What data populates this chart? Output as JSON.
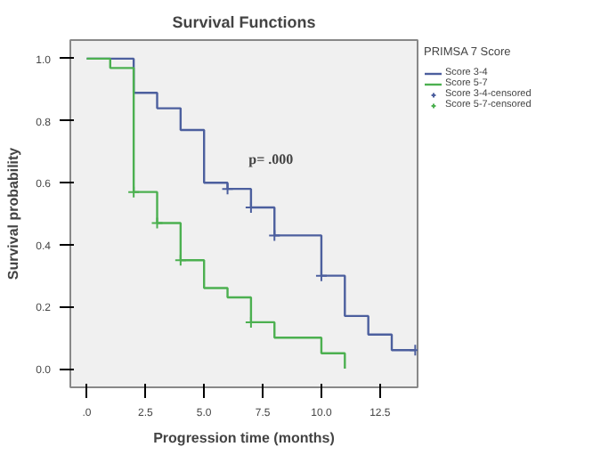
{
  "chart_data": {
    "type": "step",
    "title": "Survival Functions",
    "xlabel": "Progression time (months)",
    "ylabel": "Survival probability",
    "legend_title": "PRIMSA 7 Score",
    "series": [
      {
        "name": "Score 3-4",
        "color": "#4c5f9e",
        "x": [
          0,
          2,
          3,
          4,
          5,
          6,
          7,
          8,
          10,
          11,
          12,
          13,
          14
        ],
        "values": [
          1.0,
          0.89,
          0.84,
          0.77,
          0.6,
          0.58,
          0.52,
          0.43,
          0.3,
          0.17,
          0.11,
          0.06,
          0.06
        ]
      },
      {
        "name": "Score 5-7",
        "color": "#4cb050",
        "x": [
          0,
          1,
          2,
          3,
          4,
          5,
          6,
          7,
          8,
          10,
          11
        ],
        "values": [
          1.0,
          0.97,
          0.57,
          0.47,
          0.35,
          0.26,
          0.23,
          0.15,
          0.1,
          0.05,
          0.0
        ]
      },
      {
        "name": "Score 3-4-censored",
        "type": "scatter",
        "marker": "cross",
        "color": "#4c5f9e",
        "x": [
          6,
          7,
          8,
          10,
          14
        ],
        "values": [
          0.58,
          0.52,
          0.43,
          0.3,
          0.06
        ]
      },
      {
        "name": "Score 5-7-censored",
        "type": "scatter",
        "marker": "cross",
        "color": "#4cb050",
        "x": [
          2,
          3,
          4,
          7
        ],
        "values": [
          0.57,
          0.47,
          0.35,
          0.15
        ]
      }
    ],
    "annotations": [
      "p= .000"
    ],
    "xlim": [
      -0.7,
      14.1
    ],
    "ylim": [
      -0.06,
      1.06
    ],
    "xticks": [
      {
        "value": 0,
        "label": ".0"
      },
      2.5,
      {
        "value": 5,
        "label": "5.0"
      },
      7.5,
      {
        "value": 10,
        "label": "10.0"
      },
      12.5
    ],
    "yticks": [
      {
        "value": 0,
        "label": "0.0"
      },
      0.2,
      0.4,
      0.6,
      0.8,
      {
        "value": 1,
        "label": "1.0"
      }
    ],
    "grid": false,
    "legend": "right"
  }
}
